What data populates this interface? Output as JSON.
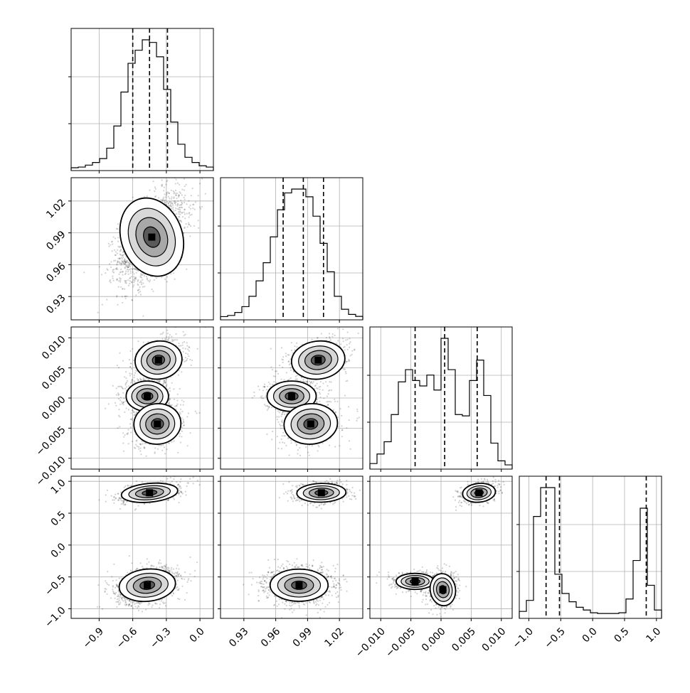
{
  "chart_data": {
    "type": "corner",
    "parameters": [
      {
        "ticks": [
          -0.9,
          -0.6,
          -0.3,
          0.0
        ],
        "tick_labels": [
          "−0.9",
          "−0.6",
          "−0.3",
          "0.0"
        ],
        "range": [
          -1.15,
          0.12
        ]
      },
      {
        "ticks": [
          0.93,
          0.96,
          0.99,
          1.02
        ],
        "tick_labels": [
          "0.93",
          "0.96",
          "0.99",
          "1.02"
        ],
        "range": [
          0.908,
          1.042
        ]
      },
      {
        "ticks": [
          -0.01,
          -0.005,
          0.0,
          0.005,
          0.01
        ],
        "tick_labels": [
          "−0.010",
          "−0.005",
          "0.000",
          "0.005",
          "0.010"
        ],
        "range": [
          -0.0118,
          0.0118
        ]
      },
      {
        "ticks": [
          -1.0,
          -0.5,
          0.0,
          0.5,
          1.0
        ],
        "tick_labels": [
          "−1.0",
          "−0.5",
          "0.0",
          "0.5",
          "1.0"
        ],
        "range": [
          -1.15,
          1.08
        ]
      }
    ],
    "histograms": [
      {
        "param": 0,
        "edges_range": [
          -1.15,
          0.12
        ],
        "counts": [
          0,
          0.5,
          2,
          4,
          7,
          15,
          32,
          58,
          80,
          90,
          98,
          96,
          85,
          60,
          35,
          18,
          8,
          4,
          1.5,
          0.5
        ],
        "quantiles": [
          -0.6,
          -0.45,
          -0.29
        ]
      },
      {
        "param": 1,
        "edges_range": [
          0.908,
          1.042
        ],
        "counts": [
          0.3,
          1.2,
          3.5,
          8,
          16,
          28,
          42,
          62,
          83,
          96,
          99,
          99,
          93,
          78,
          57,
          35,
          16,
          6,
          2,
          0.5
        ],
        "quantiles": [
          0.967,
          0.986,
          1.005
        ]
      },
      {
        "param": 2,
        "edges_range": [
          -0.0118,
          0.0118
        ],
        "counts": [
          2,
          9,
          18,
          38,
          62,
          71,
          63,
          59,
          67,
          56,
          94,
          71,
          38,
          37,
          63,
          78,
          52,
          17,
          4,
          1
        ],
        "quantiles": [
          -0.0043,
          0.0006,
          0.006
        ]
      },
      {
        "param": 3,
        "edges_range": [
          -1.15,
          1.08
        ],
        "counts": [
          3,
          11,
          72,
          93,
          93,
          30,
          16,
          10,
          6,
          4,
          2,
          1.5,
          1.5,
          1.5,
          2,
          12,
          40,
          78,
          22,
          4
        ],
        "quantiles": [
          -0.73,
          -0.52,
          0.84
        ]
      }
    ],
    "scatter_panels": [
      {
        "x": 0,
        "y": 1,
        "components": [
          {
            "cx": -0.43,
            "cy": 0.986,
            "sx": 0.13,
            "sy": 0.018,
            "rho": 0.5,
            "weight": 1.0
          }
        ]
      },
      {
        "x": 0,
        "y": 2,
        "components": [
          {
            "cx": -0.37,
            "cy": 0.0063,
            "sx": 0.1,
            "sy": 0.0015,
            "rho": 0.3,
            "weight": 0.34
          },
          {
            "cx": -0.47,
            "cy": 0.0003,
            "sx": 0.09,
            "sy": 0.0012,
            "rho": 0.0,
            "weight": 0.33
          },
          {
            "cx": -0.38,
            "cy": -0.0043,
            "sx": 0.1,
            "sy": 0.0016,
            "rho": 0.2,
            "weight": 0.33
          }
        ]
      },
      {
        "x": 1,
        "y": 2,
        "components": [
          {
            "cx": 1.0,
            "cy": 0.0063,
            "sx": 0.012,
            "sy": 0.0015,
            "rho": 0.3,
            "weight": 0.34
          },
          {
            "cx": 0.975,
            "cy": 0.0003,
            "sx": 0.011,
            "sy": 0.0012,
            "rho": 0.0,
            "weight": 0.33
          },
          {
            "cx": 0.993,
            "cy": -0.0043,
            "sx": 0.012,
            "sy": 0.0016,
            "rho": 0.2,
            "weight": 0.33
          }
        ]
      },
      {
        "x": 0,
        "y": 3,
        "components": [
          {
            "cx": -0.45,
            "cy": 0.82,
            "sx": 0.12,
            "sy": 0.07,
            "rho": 0.45,
            "weight": 0.3
          },
          {
            "cx": -0.47,
            "cy": -0.63,
            "sx": 0.12,
            "sy": 0.12,
            "rho": 0.3,
            "weight": 0.7
          }
        ]
      },
      {
        "x": 1,
        "y": 3,
        "components": [
          {
            "cx": 1.003,
            "cy": 0.82,
            "sx": 0.011,
            "sy": 0.07,
            "rho": 0.1,
            "weight": 0.3
          },
          {
            "cx": 0.982,
            "cy": -0.63,
            "sx": 0.013,
            "sy": 0.12,
            "rho": 0.0,
            "weight": 0.7
          }
        ]
      },
      {
        "x": 2,
        "y": 3,
        "components": [
          {
            "cx": 0.0063,
            "cy": 0.82,
            "sx": 0.0013,
            "sy": 0.07,
            "rho": 0.3,
            "weight": 0.3
          },
          {
            "cx": -0.0043,
            "cy": -0.57,
            "sx": 0.0015,
            "sy": 0.06,
            "rho": 0.0,
            "weight": 0.35
          },
          {
            "cx": 0.0003,
            "cy": -0.7,
            "sx": 0.001,
            "sy": 0.12,
            "rho": 0.2,
            "weight": 0.35
          }
        ]
      }
    ],
    "quantile_line_style": "dashed",
    "contour_levels": 4,
    "grid": true
  }
}
